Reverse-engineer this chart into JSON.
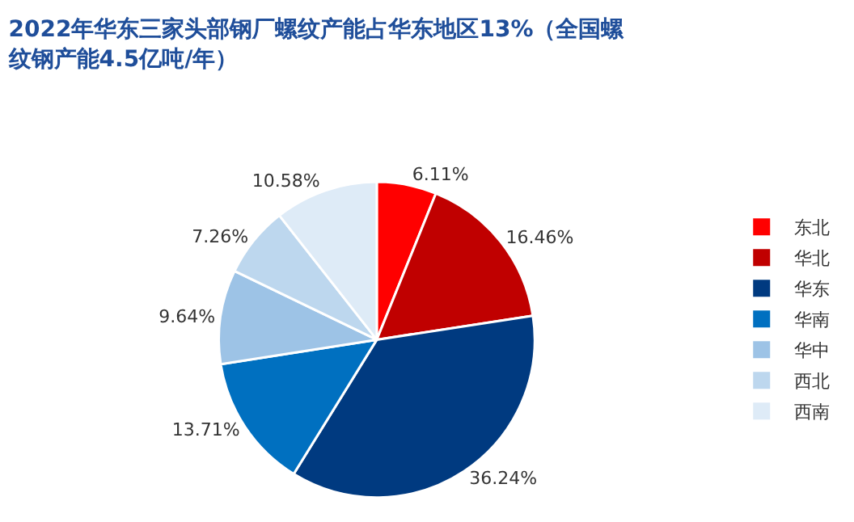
{
  "chart_data": {
    "type": "pie",
    "title": "2022年华东三家头部钢厂螺纹产能占华东地区13%（全国螺纹钢产能4.5亿吨/年）",
    "categories": [
      "东北",
      "华北",
      "华东",
      "华南",
      "华中",
      "西北",
      "西南"
    ],
    "values": [
      6.11,
      16.46,
      36.24,
      13.71,
      9.64,
      7.26,
      10.58
    ],
    "value_labels": [
      "6.11%",
      "16.46%",
      "36.24%",
      "13.71%",
      "9.64%",
      "7.26%",
      "10.58%"
    ],
    "colors": [
      "#ff0000",
      "#c00000",
      "#003a80",
      "#0070c0",
      "#9dc3e6",
      "#bdd7ee",
      "#deebf7"
    ],
    "legend": "right"
  }
}
